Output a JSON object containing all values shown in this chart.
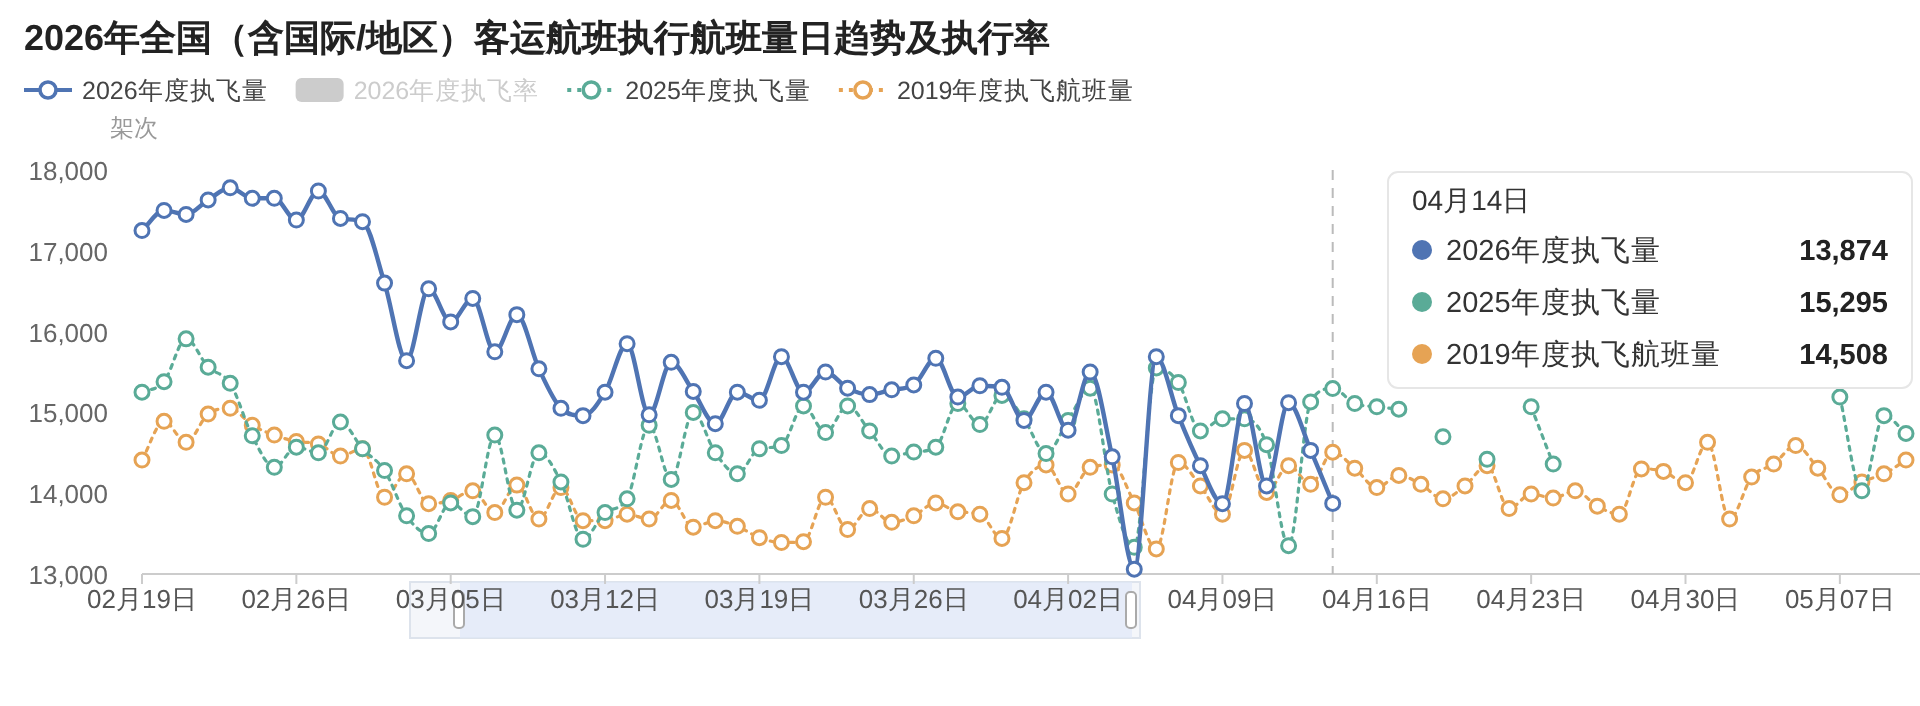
{
  "chart_data": {
    "type": "line",
    "title": "2026年全国（含国际/地区）客运航班执行航班量日趋势及执行率",
    "ylabel": "架次",
    "x": [
      "--02-19",
      "--02-20",
      "--02-21",
      "--02-22",
      "--02-23",
      "--02-24",
      "--02-25",
      "--02-26",
      "--02-27",
      "--02-28",
      "--03-01",
      "--03-02",
      "--03-03",
      "--03-04",
      "--03-05",
      "--03-06",
      "--03-07",
      "--03-08",
      "--03-09",
      "--03-10",
      "--03-11",
      "--03-12",
      "--03-13",
      "--03-14",
      "--03-15",
      "--03-16",
      "--03-17",
      "--03-18",
      "--03-19",
      "--03-20",
      "--03-21",
      "--03-22",
      "--03-23",
      "--03-24",
      "--03-25",
      "--03-26",
      "--03-27",
      "--03-28",
      "--03-29",
      "--03-30",
      "--03-31",
      "--04-01",
      "--04-02",
      "--04-03",
      "--04-04",
      "--04-05",
      "--04-06",
      "--04-07",
      "--04-08",
      "--04-09",
      "--04-10",
      "--04-11",
      "--04-12",
      "--04-13",
      "--04-14",
      "--04-15",
      "--04-16",
      "--04-17",
      "--04-18",
      "--04-19",
      "--04-20",
      "--04-21",
      "--04-22",
      "--04-23",
      "--04-24",
      "--04-25",
      "--04-26",
      "--04-27",
      "--04-28",
      "--04-29",
      "--04-30",
      "--05-01",
      "--05-02",
      "--05-03",
      "--05-04",
      "--05-05",
      "--05-06",
      "--05-07",
      "--05-08",
      "--05-09",
      "--05-10"
    ],
    "xlim": [
      "--02-19",
      "--05-10"
    ],
    "xticks": [
      {
        "value": "--02-19",
        "label": "02月19日"
      },
      {
        "value": "--02-26",
        "label": "02月26日"
      },
      {
        "value": "--03-05",
        "label": "03月05日"
      },
      {
        "value": "--03-12",
        "label": "03月12日"
      },
      {
        "value": "--03-19",
        "label": "03月19日"
      },
      {
        "value": "--03-26",
        "label": "03月26日"
      },
      {
        "value": "--04-02",
        "label": "04月02日"
      },
      {
        "value": "--04-09",
        "label": "04月09日"
      },
      {
        "value": "--04-16",
        "label": "04月16日"
      },
      {
        "value": "--04-23",
        "label": "04月23日"
      },
      {
        "value": "--04-30",
        "label": "04月30日"
      },
      {
        "value": "--05-07",
        "label": "05月07日"
      }
    ],
    "ylim": [
      13000,
      18000
    ],
    "yticks": [
      {
        "value": 13000,
        "label": "13,000"
      },
      {
        "value": 14000,
        "label": "14,000"
      },
      {
        "value": 15000,
        "label": "15,000"
      },
      {
        "value": 16000,
        "label": "16,000"
      },
      {
        "value": 17000,
        "label": "17,000"
      },
      {
        "value": 18000,
        "label": "18,000"
      }
    ],
    "legend": "top left",
    "marker": "circle",
    "series": [
      {
        "name": "2026年度执飞量",
        "color": "#4f74b3",
        "line_style": "solid",
        "values": [
          17250,
          17500,
          17450,
          17630,
          17780,
          17650,
          17650,
          17380,
          17740,
          17400,
          17360,
          16600,
          15640,
          16530,
          16120,
          16410,
          15750,
          16210,
          15540,
          15050,
          14960,
          15250,
          15850,
          14970,
          15620,
          15260,
          14860,
          15250,
          15150,
          15690,
          15250,
          15500,
          15300,
          15220,
          15280,
          15340,
          15670,
          15190,
          15330,
          15310,
          14900,
          15250,
          14780,
          15500,
          14450,
          13060,
          15690,
          14960,
          14340,
          13870,
          15110,
          14090,
          15120,
          14530,
          13874,
          null,
          null,
          null,
          null,
          null,
          null,
          null,
          null,
          null,
          null,
          null,
          null,
          null,
          null,
          null,
          null,
          null,
          null,
          null,
          null,
          null,
          null,
          null,
          null,
          null,
          null
        ]
      },
      {
        "name": "2026年度执飞率",
        "type": "bar",
        "color": "#cccccc",
        "values": [
          null,
          null,
          null,
          null,
          null,
          null,
          null,
          null,
          null,
          null,
          null,
          null,
          null,
          null,
          null,
          null,
          null,
          null,
          null,
          null,
          null,
          null,
          null,
          null,
          null,
          null,
          null,
          null,
          null,
          null,
          null,
          null,
          null,
          null,
          null,
          null,
          null,
          null,
          null,
          null,
          null,
          null,
          null,
          null,
          null,
          null,
          null,
          null,
          null,
          null,
          null,
          null,
          null,
          null,
          null,
          null,
          null,
          null,
          null,
          null,
          null,
          null,
          null,
          null,
          null,
          null,
          null,
          null,
          null,
          null,
          null,
          null,
          null,
          null,
          null,
          null,
          null,
          null,
          null,
          null,
          null
        ]
      },
      {
        "name": "2025年度执飞量",
        "color": "#5aab97",
        "line_style": "dotted",
        "values": [
          15250,
          15380,
          15910,
          15560,
          15360,
          14710,
          14320,
          14570,
          14500,
          14880,
          14550,
          14280,
          13720,
          13500,
          13880,
          13710,
          14720,
          13790,
          14500,
          14140,
          13430,
          13760,
          13930,
          14840,
          14170,
          15000,
          14500,
          14240,
          14550,
          14590,
          15080,
          14750,
          15080,
          14770,
          14460,
          14510,
          14570,
          15110,
          14850,
          15210,
          14920,
          14490,
          14900,
          15300,
          13990,
          13330,
          15550,
          15370,
          14770,
          14920,
          14920,
          14600,
          13350,
          15130,
          15295,
          15110,
          15070,
          15040,
          null,
          14700,
          null,
          14420,
          null,
          15070,
          14360,
          null,
          null,
          null,
          null,
          null,
          null,
          null,
          null,
          null,
          null,
          null,
          null,
          15190,
          14030,
          14960,
          14740
        ]
      },
      {
        "name": "2019年度执飞航班量",
        "color": "#e6a354",
        "line_style": "dotted",
        "values": [
          14410,
          14890,
          14630,
          14980,
          15050,
          14840,
          14720,
          14640,
          14610,
          14460,
          14550,
          13950,
          14240,
          13870,
          13910,
          14030,
          13760,
          14100,
          13680,
          14070,
          13660,
          13660,
          13740,
          13680,
          13910,
          13580,
          13660,
          13590,
          13450,
          13390,
          13400,
          13950,
          13550,
          13810,
          13640,
          13720,
          13880,
          13770,
          13740,
          13440,
          14130,
          14350,
          13990,
          14320,
          14350,
          13880,
          13310,
          14380,
          14090,
          13740,
          14530,
          14010,
          14340,
          14110,
          14508,
          14310,
          14070,
          14220,
          14110,
          13930,
          14090,
          14340,
          13810,
          13990,
          13940,
          14030,
          13840,
          13740,
          14300,
          14270,
          14130,
          14630,
          13680,
          14200,
          14360,
          14590,
          14310,
          13980,
          14140,
          14240,
          14410
        ]
      }
    ],
    "ref_lines": [
      {
        "axis": "x",
        "value": "--04-14",
        "color": "#bbbbbb",
        "line_style": "dashed"
      }
    ],
    "annotations": [
      "04月14日",
      "13,874",
      "15,295",
      "14,508"
    ]
  }
}
